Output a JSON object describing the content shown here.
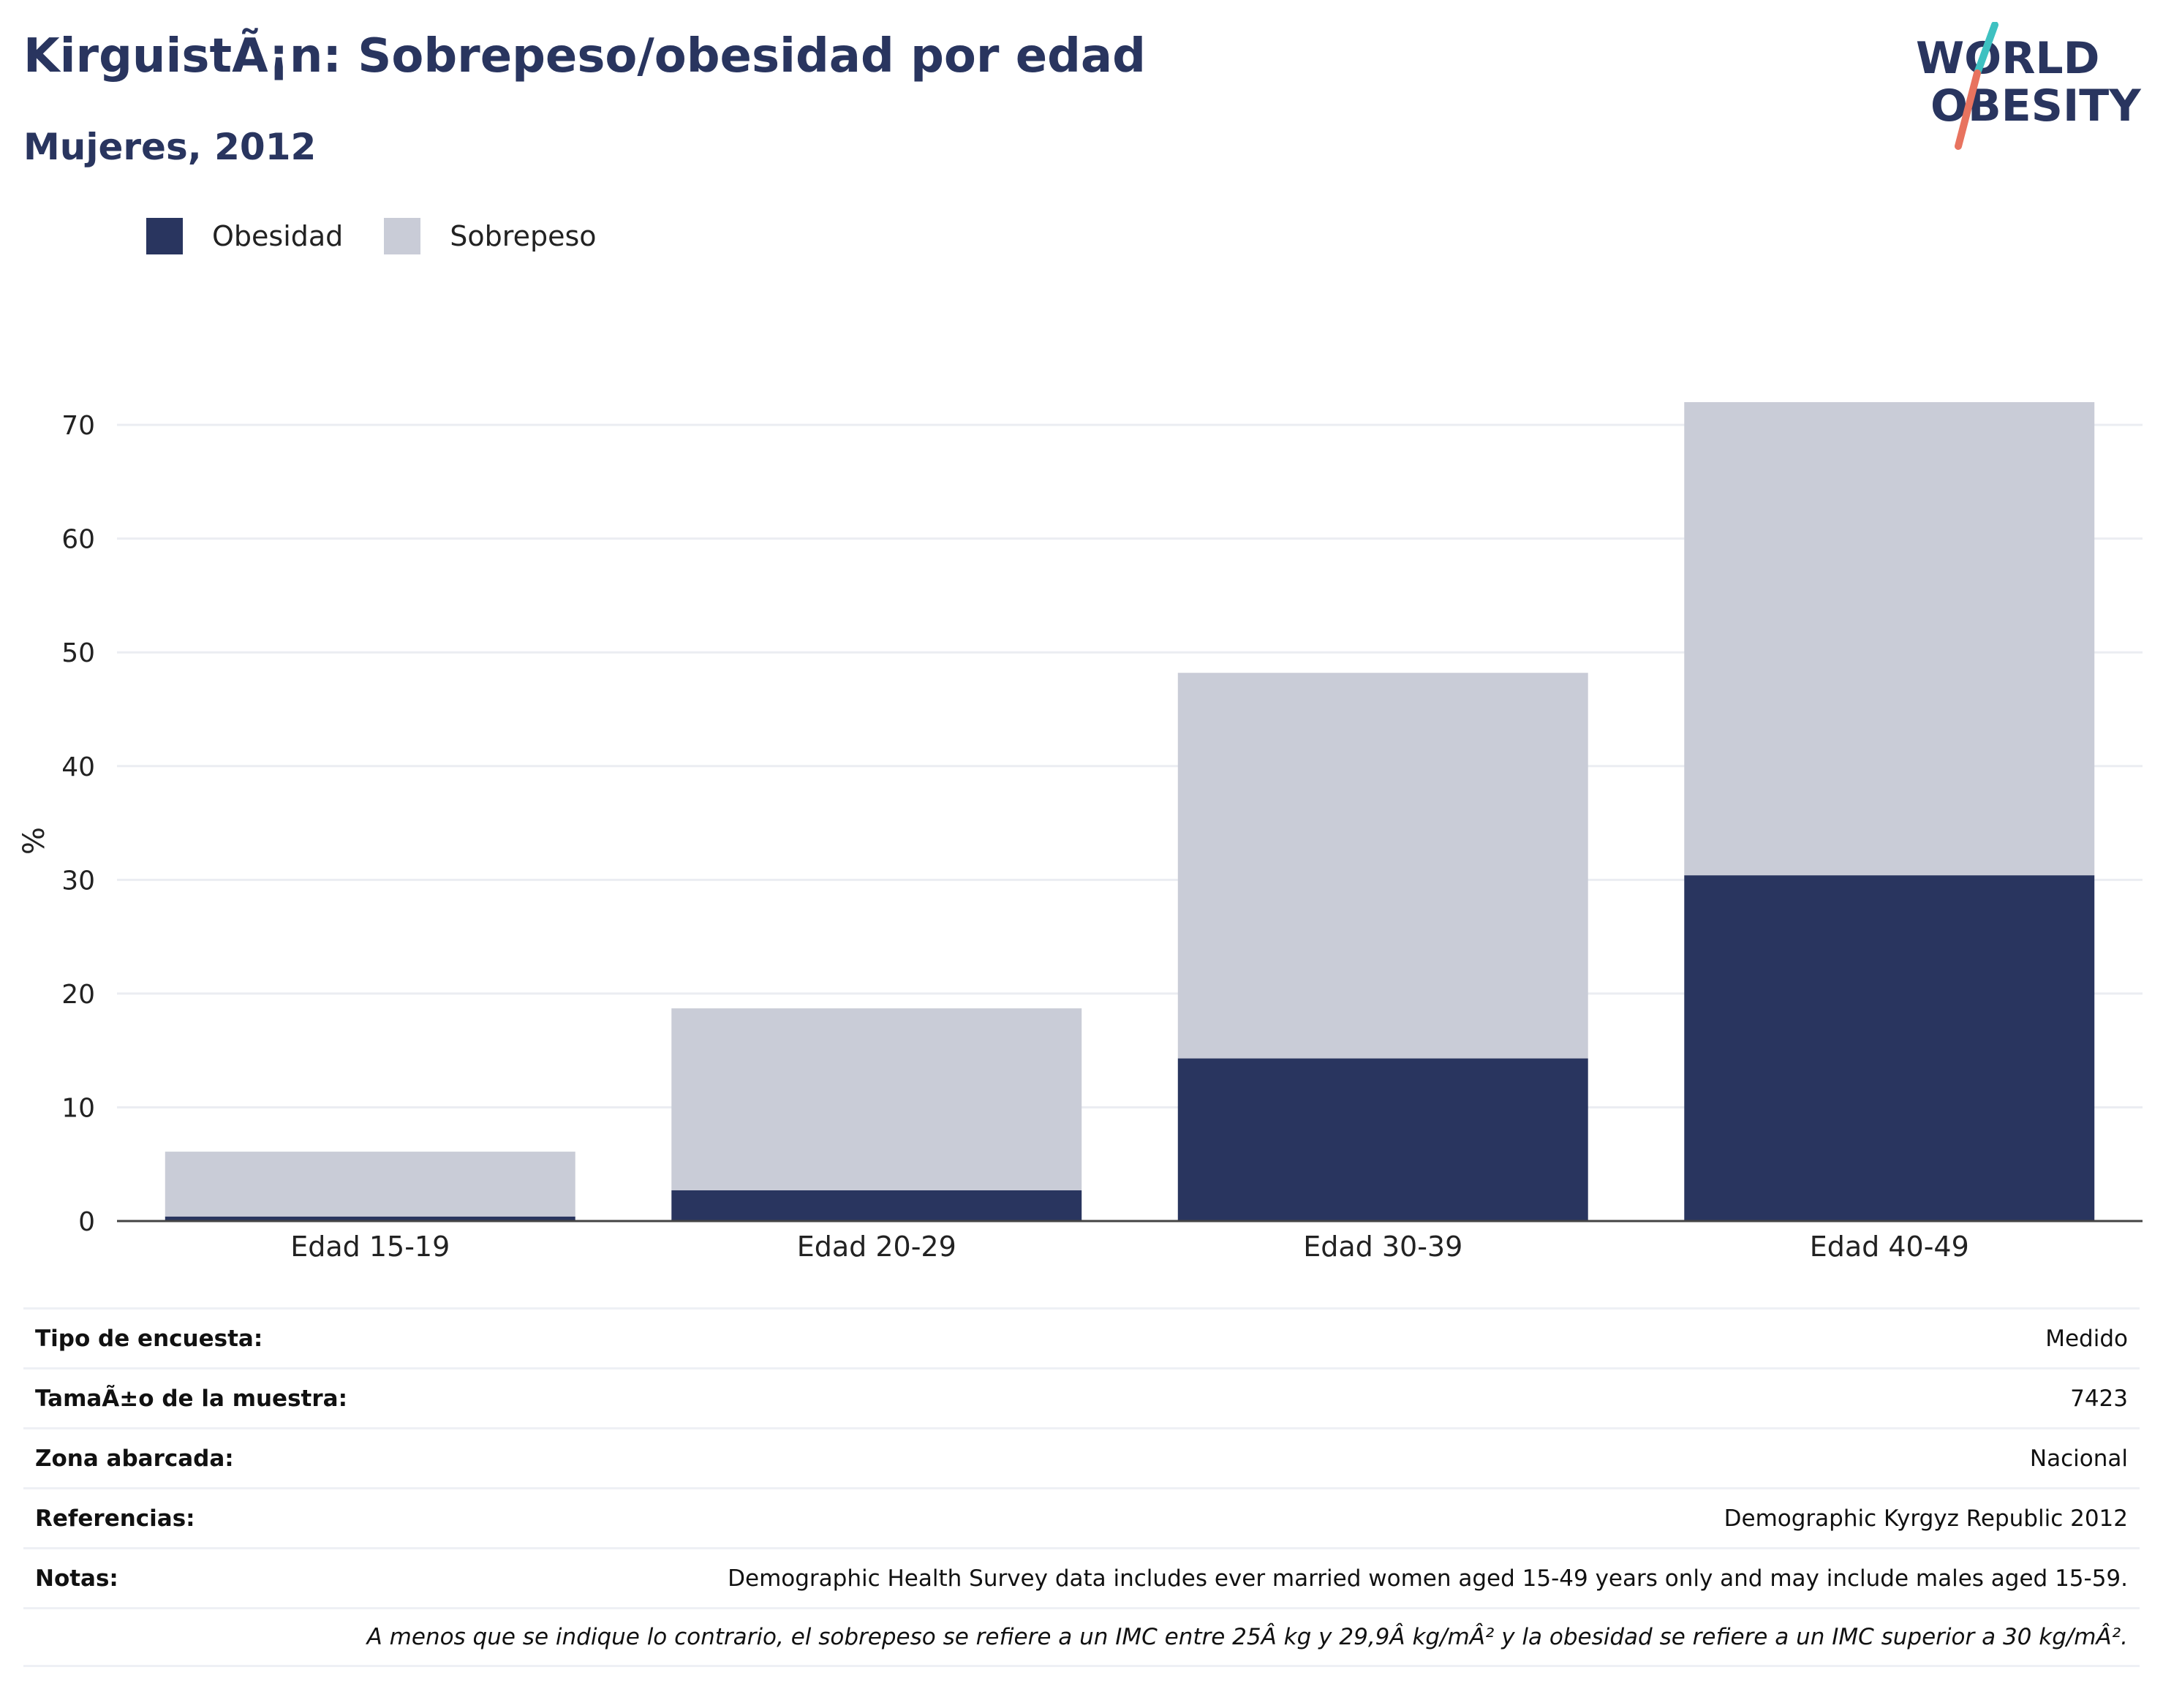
{
  "header": {
    "title": "KirguistÃ¡n: Sobrepeso/obesidad por edad",
    "subtitle": "Mujeres, 2012"
  },
  "logo": {
    "line1": "WORLD",
    "line2": "OBESITY"
  },
  "colors": {
    "obesity": "#29355f",
    "overweight": "#c9ccd7",
    "title": "#29355f",
    "logo_teal": "#3ec1c1",
    "logo_coral": "#e8735f"
  },
  "legend": [
    {
      "label": "Obesidad",
      "color": "#29355f"
    },
    {
      "label": "Sobrepeso",
      "color": "#c9ccd7"
    }
  ],
  "chart_data": {
    "type": "bar",
    "stacked": true,
    "categories": [
      "Edad 15-19",
      "Edad 20-29",
      "Edad 30-39",
      "Edad 40-49"
    ],
    "series": [
      {
        "name": "Obesidad",
        "values": [
          0.4,
          2.7,
          14.3,
          30.4
        ]
      },
      {
        "name": "Sobrepeso",
        "values": [
          5.7,
          16.0,
          33.9,
          41.6
        ]
      }
    ],
    "title": "KirguistÃ¡n: Sobrepeso/obesidad por edad",
    "subtitle": "Mujeres, 2012",
    "xlabel": "",
    "ylabel": "%",
    "ylim": [
      0,
      72
    ],
    "yticks": [
      0,
      10,
      20,
      30,
      40,
      50,
      60,
      70
    ],
    "grid": true,
    "legend_position": "top-left"
  },
  "info": [
    {
      "label": "Tipo de encuesta:",
      "value": "Medido"
    },
    {
      "label": "TamaÃ±o de la muestra:",
      "value": "7423"
    },
    {
      "label": "Zona abarcada:",
      "value": "Nacional"
    },
    {
      "label": "Referencias:",
      "value": "Demographic Kyrgyz Republic 2012"
    },
    {
      "label": "Notas:",
      "value": "Demographic Health Survey data includes ever married women aged 15-49 years only and may include males aged 15-59."
    }
  ],
  "footnote": "A menos que se indique lo contrario, el sobrepeso se refiere a un IMC entre 25Â kg y 29,9Â kg/mÂ² y la obesidad se refiere a un IMC superior a 30 kg/mÂ²."
}
